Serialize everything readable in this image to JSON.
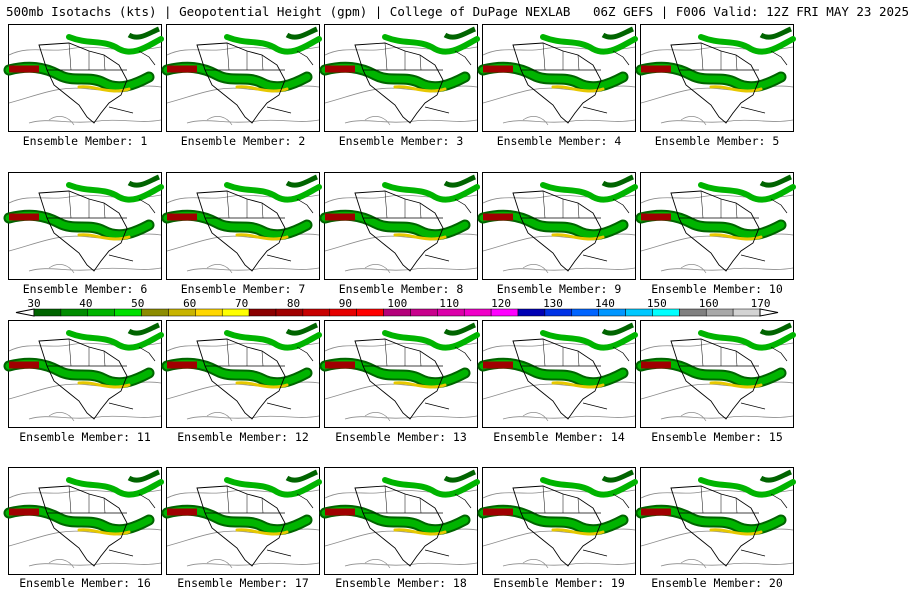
{
  "header": {
    "title": "500mb Isotachs (kts) | Geopotential Height (gpm) | College of DuPage NEXLAB   06Z GEFS | F006 Valid: 12Z FRI MAY 23 2025"
  },
  "panels": [
    {
      "caption": "Ensemble Member: 1"
    },
    {
      "caption": "Ensemble Member: 2"
    },
    {
      "caption": "Ensemble Member: 3"
    },
    {
      "caption": "Ensemble Member: 4"
    },
    {
      "caption": "Ensemble Member: 5"
    },
    {
      "caption": "Ensemble Member: 6"
    },
    {
      "caption": "Ensemble Member: 7"
    },
    {
      "caption": "Ensemble Member: 8"
    },
    {
      "caption": "Ensemble Member: 9"
    },
    {
      "caption": "Ensemble Member: 10"
    },
    {
      "caption": "Ensemble Member: 11"
    },
    {
      "caption": "Ensemble Member: 12"
    },
    {
      "caption": "Ensemble Member: 13"
    },
    {
      "caption": "Ensemble Member: 14"
    },
    {
      "caption": "Ensemble Member: 15"
    },
    {
      "caption": "Ensemble Member: 16"
    },
    {
      "caption": "Ensemble Member: 17"
    },
    {
      "caption": "Ensemble Member: 18"
    },
    {
      "caption": "Ensemble Member: 19"
    },
    {
      "caption": "Ensemble Member: 20"
    }
  ],
  "colorbar": {
    "labels": [
      "30",
      "40",
      "50",
      "60",
      "70",
      "80",
      "90",
      "100",
      "110",
      "120",
      "130",
      "140",
      "150",
      "160",
      "170"
    ],
    "colors": [
      "#006400",
      "#008c00",
      "#00b400",
      "#00e000",
      "#8c8c00",
      "#c8b400",
      "#ffd700",
      "#ffff00",
      "#8b0000",
      "#a00000",
      "#c80000",
      "#e60000",
      "#ff0000",
      "#b4007a",
      "#c8008c",
      "#dc00aa",
      "#f000c8",
      "#ff00ff",
      "#0000b4",
      "#0032e6",
      "#0064ff",
      "#0096ff",
      "#00c8ff",
      "#00ffff",
      "#808080",
      "#a9a9a9",
      "#d3d3d3"
    ]
  },
  "map_colors": {
    "land_outline": "#000000",
    "height_contour": "#8c8c8c",
    "jet_green": "#00b400",
    "jet_dark_green": "#006400",
    "jet_yellow": "#e6c800",
    "jet_red": "#a00000"
  }
}
